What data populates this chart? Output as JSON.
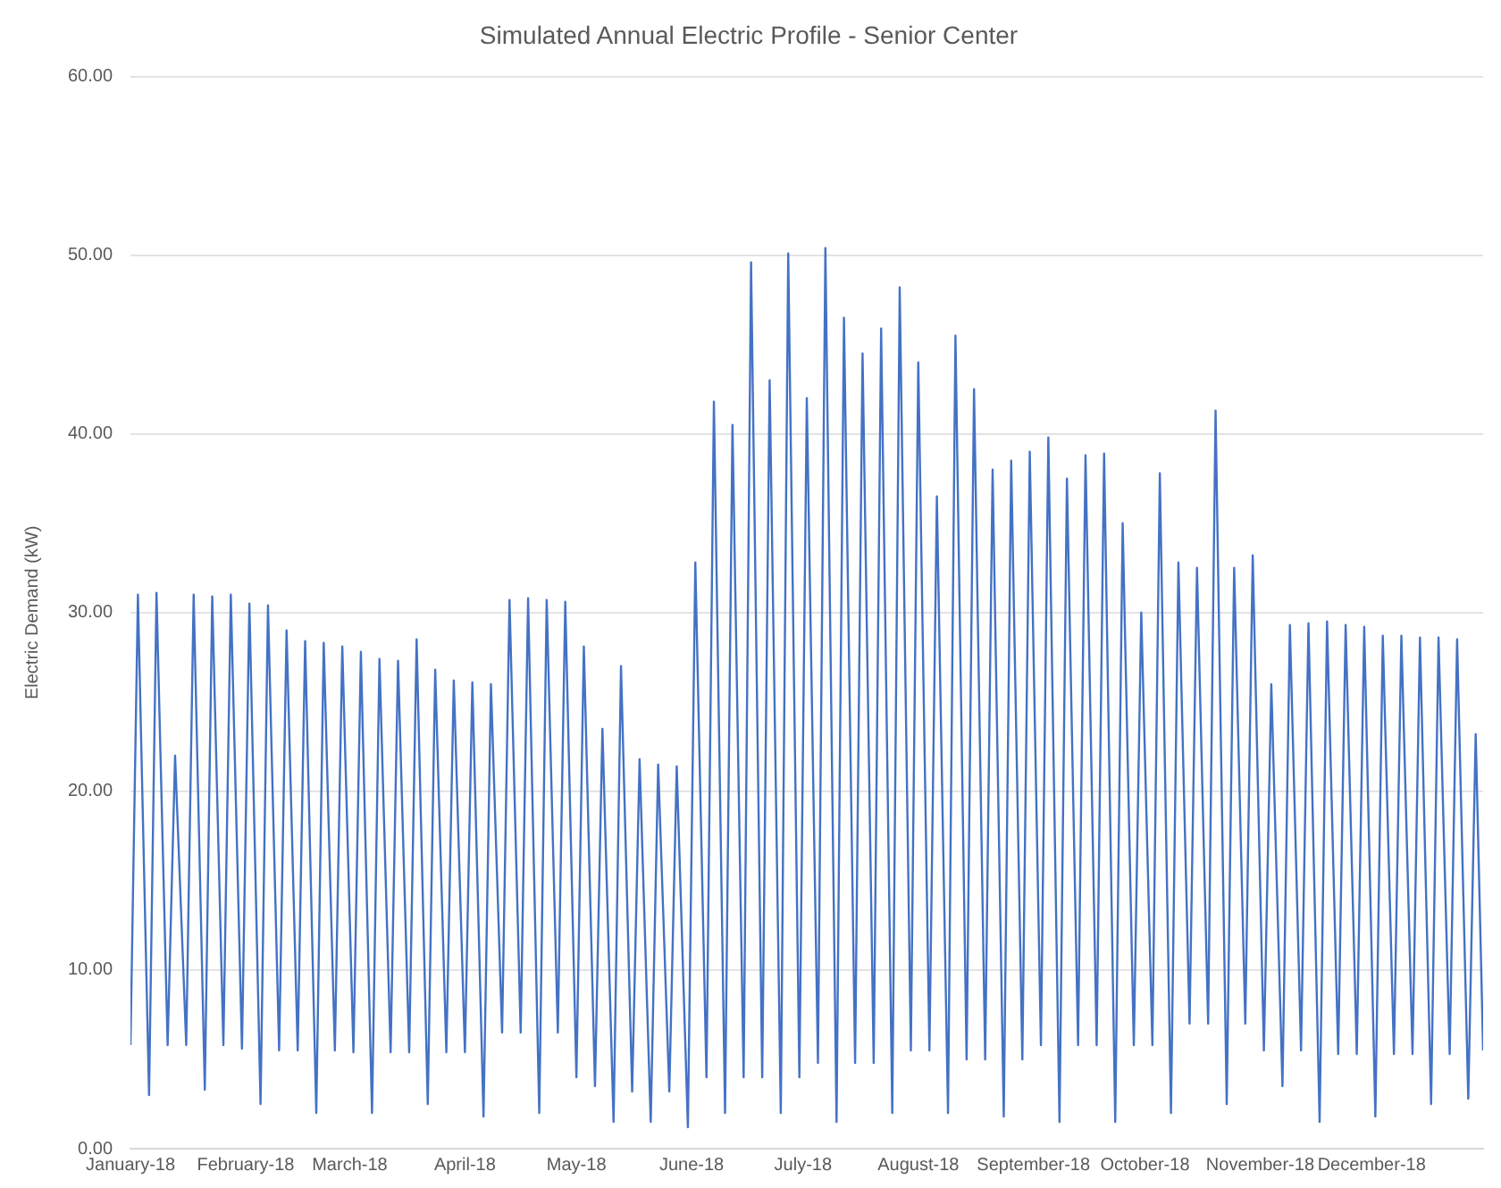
{
  "chart_data": {
    "type": "line",
    "title": "Simulated Annual Electric Profile - Senior Center",
    "ylabel": "Electric Demand (kW)",
    "x": [
      "2018-01-01",
      "2018-01-03",
      "2018-01-06",
      "2018-01-08",
      "2018-01-11",
      "2018-01-13",
      "2018-01-16",
      "2018-01-18",
      "2018-01-21",
      "2018-01-23",
      "2018-01-26",
      "2018-01-28",
      "2018-01-31",
      "2018-02-02",
      "2018-02-05",
      "2018-02-07",
      "2018-02-10",
      "2018-02-12",
      "2018-02-15",
      "2018-02-17",
      "2018-02-20",
      "2018-02-22",
      "2018-02-25",
      "2018-02-27",
      "2018-03-02",
      "2018-03-04",
      "2018-03-07",
      "2018-03-09",
      "2018-03-12",
      "2018-03-14",
      "2018-03-17",
      "2018-03-19",
      "2018-03-22",
      "2018-03-24",
      "2018-03-27",
      "2018-03-29",
      "2018-04-01",
      "2018-04-03",
      "2018-04-06",
      "2018-04-08",
      "2018-04-11",
      "2018-04-13",
      "2018-04-16",
      "2018-04-18",
      "2018-04-21",
      "2018-04-23",
      "2018-04-26",
      "2018-04-28",
      "2018-05-01",
      "2018-05-03",
      "2018-05-06",
      "2018-05-08",
      "2018-05-11",
      "2018-05-13",
      "2018-05-16",
      "2018-05-18",
      "2018-05-21",
      "2018-05-23",
      "2018-05-26",
      "2018-05-28",
      "2018-05-31",
      "2018-06-02",
      "2018-06-05",
      "2018-06-07",
      "2018-06-10",
      "2018-06-12",
      "2018-06-15",
      "2018-06-17",
      "2018-06-20",
      "2018-06-22",
      "2018-06-25",
      "2018-06-27",
      "2018-06-30",
      "2018-07-02",
      "2018-07-05",
      "2018-07-07",
      "2018-07-10",
      "2018-07-12",
      "2018-07-15",
      "2018-07-17",
      "2018-07-20",
      "2018-07-22",
      "2018-07-25",
      "2018-07-27",
      "2018-07-30",
      "2018-08-01",
      "2018-08-04",
      "2018-08-06",
      "2018-08-09",
      "2018-08-11",
      "2018-08-14",
      "2018-08-16",
      "2018-08-19",
      "2018-08-21",
      "2018-08-24",
      "2018-08-26",
      "2018-08-29",
      "2018-08-31",
      "2018-09-03",
      "2018-09-05",
      "2018-09-08",
      "2018-09-10",
      "2018-09-13",
      "2018-09-15",
      "2018-09-18",
      "2018-09-20",
      "2018-09-23",
      "2018-09-25",
      "2018-09-28",
      "2018-09-30",
      "2018-10-03",
      "2018-10-05",
      "2018-10-08",
      "2018-10-10",
      "2018-10-13",
      "2018-10-15",
      "2018-10-18",
      "2018-10-20",
      "2018-10-23",
      "2018-10-25",
      "2018-10-28",
      "2018-10-30",
      "2018-11-02",
      "2018-11-04",
      "2018-11-07",
      "2018-11-09",
      "2018-11-12",
      "2018-11-14",
      "2018-11-17",
      "2018-11-19",
      "2018-11-22",
      "2018-11-24",
      "2018-11-27",
      "2018-11-29",
      "2018-12-02",
      "2018-12-04",
      "2018-12-07",
      "2018-12-09",
      "2018-12-12",
      "2018-12-14",
      "2018-12-17",
      "2018-12-19",
      "2018-12-22",
      "2018-12-24",
      "2018-12-27",
      "2018-12-29",
      "2018-12-31"
    ],
    "series": [
      {
        "color": "#4472c4",
        "values": [
          5.8,
          31.0,
          3.0,
          31.1,
          5.8,
          22.0,
          5.8,
          31.0,
          3.3,
          30.9,
          5.8,
          31.0,
          5.6,
          30.5,
          2.5,
          30.4,
          5.5,
          29.0,
          5.5,
          28.4,
          2.0,
          28.3,
          5.5,
          28.1,
          5.4,
          27.8,
          2.0,
          27.4,
          5.4,
          27.3,
          5.4,
          28.5,
          2.5,
          26.8,
          5.4,
          26.2,
          5.4,
          26.1,
          1.8,
          26.0,
          6.5,
          30.7,
          6.5,
          30.8,
          2.0,
          30.7,
          6.5,
          30.6,
          4.0,
          28.1,
          3.5,
          23.5,
          1.5,
          27.0,
          3.2,
          21.8,
          1.5,
          21.5,
          3.2,
          21.4,
          1.2,
          32.8,
          4.0,
          41.8,
          2.0,
          40.5,
          4.0,
          49.6,
          4.0,
          43.0,
          2.0,
          50.1,
          4.0,
          42.0,
          4.8,
          50.4,
          1.5,
          46.5,
          4.8,
          44.5,
          4.8,
          45.9,
          2.0,
          48.2,
          5.5,
          44.0,
          5.5,
          36.5,
          2.0,
          45.5,
          5.0,
          42.5,
          5.0,
          38.0,
          1.8,
          38.5,
          5.0,
          39.0,
          5.8,
          39.8,
          1.5,
          37.5,
          5.8,
          38.8,
          5.8,
          38.9,
          1.5,
          35.0,
          5.8,
          30.0,
          5.8,
          37.8,
          2.0,
          32.8,
          7.0,
          32.5,
          7.0,
          41.3,
          2.5,
          32.5,
          7.0,
          33.2,
          5.5,
          26.0,
          3.5,
          29.3,
          5.5,
          29.4,
          1.5,
          29.5,
          5.3,
          29.3,
          5.3,
          29.2,
          1.8,
          28.7,
          5.3,
          28.7,
          5.3,
          28.6,
          2.5,
          28.6,
          5.3,
          28.5,
          2.8,
          23.2,
          5.5
        ]
      }
    ],
    "xlim": [
      "2018-01-01",
      "2018-12-31"
    ],
    "xticks": [
      {
        "value": "2018-01-01",
        "label": "January-18"
      },
      {
        "value": "2018-02-01",
        "label": "February-18"
      },
      {
        "value": "2018-03-01",
        "label": "March-18"
      },
      {
        "value": "2018-04-01",
        "label": "April-18"
      },
      {
        "value": "2018-05-01",
        "label": "May-18"
      },
      {
        "value": "2018-06-01",
        "label": "June-18"
      },
      {
        "value": "2018-07-01",
        "label": "July-18"
      },
      {
        "value": "2018-08-01",
        "label": "August-18"
      },
      {
        "value": "2018-09-01",
        "label": "September-18"
      },
      {
        "value": "2018-10-01",
        "label": "October-18"
      },
      {
        "value": "2018-11-01",
        "label": "November-18"
      },
      {
        "value": "2018-12-01",
        "label": "December-18"
      }
    ],
    "ylim": [
      0,
      60
    ],
    "yticks": [
      {
        "value": 0,
        "label": "0.00"
      },
      {
        "value": 10,
        "label": "10.00"
      },
      {
        "value": 20,
        "label": "20.00"
      },
      {
        "value": 30,
        "label": "30.00"
      },
      {
        "value": 40,
        "label": "40.00"
      },
      {
        "value": 50,
        "label": "50.00"
      },
      {
        "value": 60,
        "label": "60.00"
      }
    ],
    "grid": "y",
    "legend": false,
    "marker": "none",
    "line_style": "solid"
  }
}
